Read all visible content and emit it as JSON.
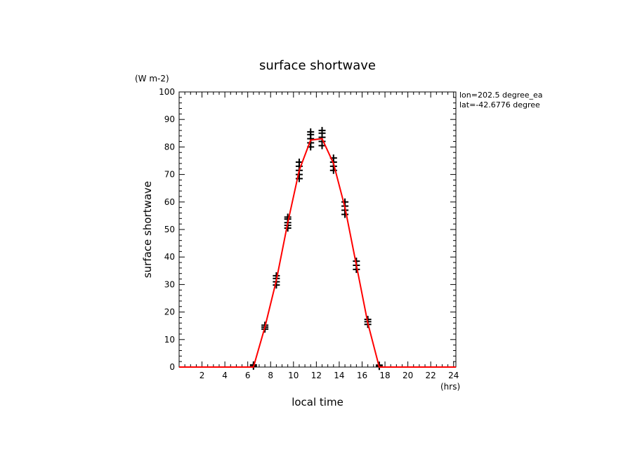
{
  "chart_data": {
    "type": "line",
    "title": "surface shortwave",
    "units": "(W m-2)",
    "xlabel": "local time",
    "xunits": "(hrs)",
    "ylabel": "surface shortwave",
    "annotations": [
      "lon=202.5 degree_ea",
      "lat=-42.6776 degree"
    ],
    "xlim": [
      0,
      24.2
    ],
    "ylim": [
      0,
      100
    ],
    "xticks": [
      2,
      4,
      6,
      8,
      10,
      12,
      14,
      16,
      18,
      20,
      22,
      24
    ],
    "yticks": [
      0,
      10,
      20,
      30,
      40,
      50,
      60,
      70,
      80,
      90,
      100
    ],
    "line_color": "#ff0000",
    "marker_color": "#000000",
    "series": [
      {
        "style": "line",
        "x": [
          0.5,
          1.5,
          2.5,
          3.5,
          4.5,
          5.5,
          6.5,
          7.5,
          8.5,
          9.5,
          10.5,
          11.5,
          12.5,
          13.5,
          14.5,
          15.5,
          16.5,
          17.5,
          18.5,
          19.5,
          20.5,
          21.5,
          22.5,
          23.5
        ],
        "values": [
          0,
          0,
          0,
          0,
          0,
          0,
          0,
          14.5,
          31.5,
          52.5,
          71.5,
          82.5,
          83,
          74,
          58,
          37,
          16,
          0,
          0,
          0,
          0,
          0,
          0,
          0
        ]
      },
      {
        "style": "markers",
        "points": [
          [
            6.5,
            0.3
          ],
          [
            6.5,
            0.8
          ],
          [
            7.5,
            13.8
          ],
          [
            7.5,
            14.5
          ],
          [
            7.5,
            15.2
          ],
          [
            8.5,
            29.8
          ],
          [
            8.5,
            31
          ],
          [
            8.5,
            32.2
          ],
          [
            8.5,
            33.2
          ],
          [
            9.5,
            50.5
          ],
          [
            9.5,
            51.5
          ],
          [
            9.5,
            52.5
          ],
          [
            9.5,
            53.8
          ],
          [
            9.5,
            54.5
          ],
          [
            10.5,
            68.5
          ],
          [
            10.5,
            70
          ],
          [
            10.5,
            71.5
          ],
          [
            10.5,
            73
          ],
          [
            10.5,
            74.5
          ],
          [
            11.5,
            80
          ],
          [
            11.5,
            81.5
          ],
          [
            11.5,
            83
          ],
          [
            11.5,
            84.5
          ],
          [
            11.5,
            85.5
          ],
          [
            12.5,
            80.5
          ],
          [
            12.5,
            82
          ],
          [
            12.5,
            83.5
          ],
          [
            12.5,
            85
          ],
          [
            12.5,
            86
          ],
          [
            13.5,
            71.5
          ],
          [
            13.5,
            73
          ],
          [
            13.5,
            74.5
          ],
          [
            13.5,
            76
          ],
          [
            14.5,
            55.5
          ],
          [
            14.5,
            57
          ],
          [
            14.5,
            58.5
          ],
          [
            14.5,
            60
          ],
          [
            15.5,
            35.5
          ],
          [
            15.5,
            37
          ],
          [
            15.5,
            38.5
          ],
          [
            16.5,
            15.5
          ],
          [
            16.5,
            16.5
          ],
          [
            16.5,
            17.3
          ],
          [
            17.5,
            0.2
          ],
          [
            17.5,
            0.7
          ]
        ]
      }
    ]
  }
}
